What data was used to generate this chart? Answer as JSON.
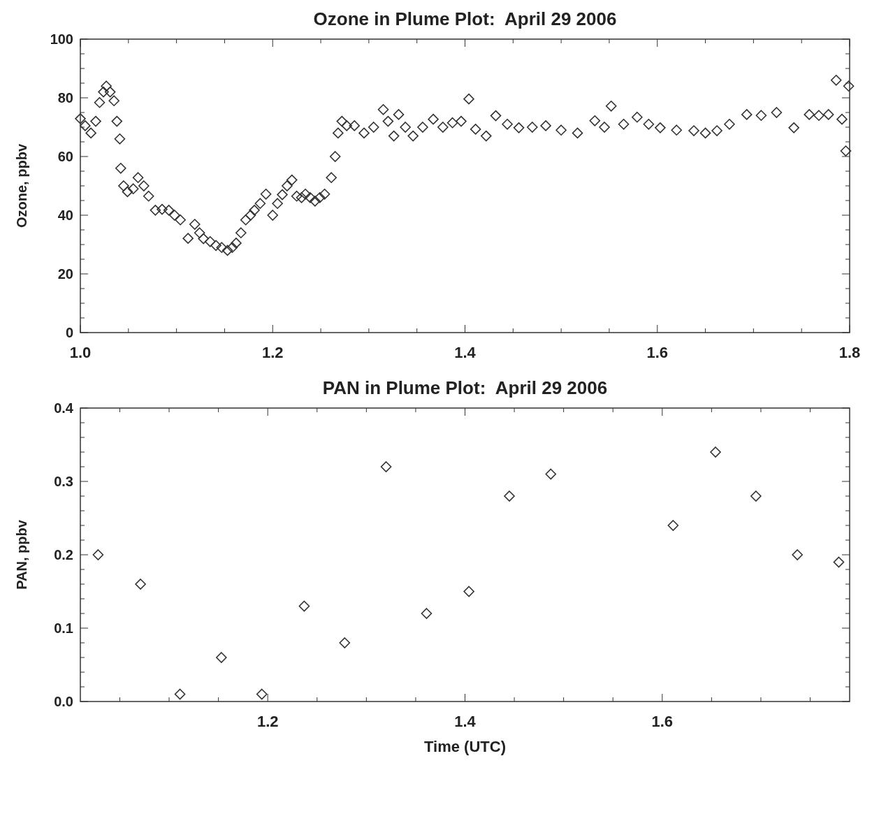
{
  "chart_data": [
    {
      "type": "scatter",
      "title": "Ozone in Plume Plot:  April 29 2006",
      "ylabel": "Ozone, ppbv",
      "marker": "diamond",
      "xlim": [
        1.0,
        1.8
      ],
      "ylim": [
        0,
        100
      ],
      "xticks": [
        {
          "value": 1.0,
          "label": "1.0"
        },
        {
          "value": 1.05,
          "label": null
        },
        {
          "value": 1.1,
          "label": null
        },
        {
          "value": 1.15,
          "label": null
        },
        1.2,
        {
          "value": 1.25,
          "label": null
        },
        {
          "value": 1.3,
          "label": null
        },
        {
          "value": 1.35,
          "label": null
        },
        1.4,
        {
          "value": 1.45,
          "label": null
        },
        {
          "value": 1.5,
          "label": null
        },
        {
          "value": 1.55,
          "label": null
        },
        1.6,
        {
          "value": 1.65,
          "label": null
        },
        {
          "value": 1.7,
          "label": null
        },
        {
          "value": 1.75,
          "label": null
        },
        1.8
      ],
      "yticks": [
        0,
        {
          "value": 5,
          "label": null
        },
        {
          "value": 10,
          "label": null
        },
        {
          "value": 15,
          "label": null
        },
        20,
        {
          "value": 25,
          "label": null
        },
        {
          "value": 30,
          "label": null
        },
        {
          "value": 35,
          "label": null
        },
        40,
        {
          "value": 45,
          "label": null
        },
        {
          "value": 50,
          "label": null
        },
        {
          "value": 55,
          "label": null
        },
        60,
        {
          "value": 65,
          "label": null
        },
        {
          "value": 70,
          "label": null
        },
        {
          "value": 75,
          "label": null
        },
        80,
        {
          "value": 85,
          "label": null
        },
        {
          "value": 90,
          "label": null
        },
        {
          "value": 95,
          "label": null
        },
        100
      ],
      "series": [
        {
          "color": "#333333",
          "x": [
            1.0,
            1.005,
            1.011,
            1.016,
            1.02,
            1.024,
            1.027,
            1.031,
            1.035,
            1.038,
            1.041,
            1.042,
            1.045,
            1.049,
            1.055,
            1.06,
            1.066,
            1.071,
            1.078,
            1.085,
            1.092,
            1.098,
            1.104,
            1.112,
            1.119,
            1.124,
            1.128,
            1.135,
            1.141,
            1.147,
            1.153,
            1.158,
            1.162,
            1.167,
            1.172,
            1.177,
            1.181,
            1.187,
            1.193,
            1.2,
            1.205,
            1.21,
            1.215,
            1.22,
            1.225,
            1.23,
            1.234,
            1.239,
            1.244,
            1.249,
            1.254,
            1.261,
            1.265,
            1.268,
            1.272,
            1.277,
            1.285,
            1.295,
            1.305,
            1.315,
            1.32,
            1.326,
            1.331,
            1.338,
            1.346,
            1.356,
            1.367,
            1.377,
            1.387,
            1.396,
            1.404,
            1.411,
            1.422,
            1.432,
            1.444,
            1.456,
            1.47,
            1.484,
            1.5,
            1.517,
            1.535,
            1.545,
            1.552,
            1.565,
            1.579,
            1.591,
            1.603,
            1.62,
            1.638,
            1.65,
            1.662,
            1.675,
            1.693,
            1.708,
            1.724,
            1.742,
            1.758,
            1.768,
            1.778,
            1.786,
            1.792,
            1.796,
            1.799
          ],
          "values": [
            72.9,
            70.5,
            68,
            72,
            78.4,
            82,
            84,
            82,
            79,
            72,
            66,
            56,
            50,
            48,
            49,
            52.8,
            50,
            46.5,
            41.7,
            42,
            41.7,
            40,
            38.4,
            32.1,
            36.9,
            34,
            32,
            31,
            29.7,
            29,
            28,
            29,
            30.5,
            34,
            38.4,
            40,
            41.7,
            44,
            47.2,
            40,
            44,
            47,
            50,
            52,
            46.5,
            46,
            47.2,
            46,
            44.8,
            46,
            47.2,
            52.8,
            60,
            68,
            72,
            70.5,
            70.5,
            68,
            70,
            76,
            72,
            67,
            74.3,
            70,
            67,
            70,
            72.7,
            70,
            71.5,
            72,
            79.6,
            69.3,
            67,
            73.9,
            71,
            69.8,
            70,
            70.5,
            69,
            68,
            72.2,
            70,
            77.2,
            71,
            73.4,
            71,
            69.8,
            69,
            68.8,
            68,
            68.8,
            71,
            74.3,
            74,
            75,
            69.8,
            74.3,
            74,
            74.3,
            86,
            72.7,
            61.9,
            84
          ]
        }
      ]
    },
    {
      "type": "scatter",
      "title": "PAN in Plume Plot:  April 29 2006",
      "xlabel": "Time (UTC)",
      "ylabel": "PAN, ppbv",
      "marker": "diamond",
      "xlim": [
        1.01,
        1.79
      ],
      "ylim": [
        0,
        0.4
      ],
      "xticks": [
        {
          "value": 1.05,
          "label": null
        },
        {
          "value": 1.1,
          "label": null
        },
        {
          "value": 1.15,
          "label": null
        },
        1.2,
        {
          "value": 1.25,
          "label": null
        },
        {
          "value": 1.3,
          "label": null
        },
        {
          "value": 1.35,
          "label": null
        },
        1.4,
        {
          "value": 1.45,
          "label": null
        },
        {
          "value": 1.5,
          "label": null
        },
        {
          "value": 1.55,
          "label": null
        },
        1.6,
        {
          "value": 1.65,
          "label": null
        },
        {
          "value": 1.7,
          "label": null
        },
        {
          "value": 1.75,
          "label": null
        }
      ],
      "yticks": [
        {
          "value": 0,
          "label": "0.0"
        },
        {
          "value": 0.02,
          "label": null
        },
        {
          "value": 0.04,
          "label": null
        },
        {
          "value": 0.06,
          "label": null
        },
        {
          "value": 0.08,
          "label": null
        },
        0.1,
        {
          "value": 0.12,
          "label": null
        },
        {
          "value": 0.14,
          "label": null
        },
        {
          "value": 0.16,
          "label": null
        },
        {
          "value": 0.18,
          "label": null
        },
        0.2,
        {
          "value": 0.22,
          "label": null
        },
        {
          "value": 0.24,
          "label": null
        },
        {
          "value": 0.26,
          "label": null
        },
        {
          "value": 0.28,
          "label": null
        },
        0.3,
        {
          "value": 0.32,
          "label": null
        },
        {
          "value": 0.34,
          "label": null
        },
        {
          "value": 0.36,
          "label": null
        },
        {
          "value": 0.38,
          "label": null
        },
        0.4
      ],
      "series": [
        {
          "color": "#333333",
          "x": [
            1.028,
            1.071,
            1.111,
            1.153,
            1.194,
            1.237,
            1.278,
            1.32,
            1.361,
            1.404,
            1.445,
            1.487,
            1.611,
            1.654,
            1.695,
            1.737,
            1.779
          ],
          "values": [
            0.2,
            0.16,
            0.01,
            0.06,
            0.01,
            0.13,
            0.08,
            0.32,
            0.12,
            0.15,
            0.28,
            0.31,
            0.24,
            0.34,
            0.28,
            0.2,
            0.19
          ]
        }
      ]
    }
  ]
}
